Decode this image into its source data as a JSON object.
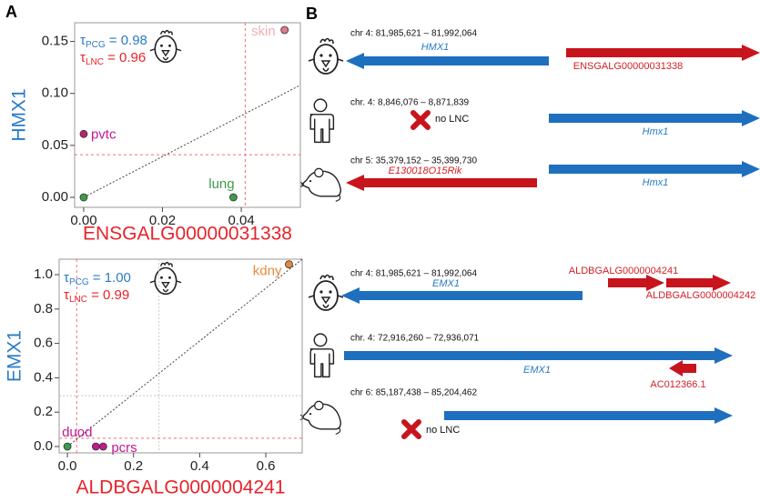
{
  "panels": [
    "A",
    "B"
  ],
  "chart_data": [
    {
      "type": "scatter",
      "x_label": "ENSGALG00000031338",
      "x_label_color": "#e8232a",
      "y_label": "HMX1",
      "y_label_color": "#2a7bc5",
      "xlim": [
        -0.0023,
        0.055
      ],
      "ylim": [
        -0.0096,
        0.168
      ],
      "xticks": [
        {
          "value": 0,
          "label": "0.00"
        },
        {
          "value": 0.02,
          "label": "0.02"
        },
        {
          "value": 0.04,
          "label": "0.04"
        }
      ],
      "yticks": [
        {
          "value": 0,
          "label": "0.00"
        },
        {
          "value": 0.05,
          "label": "0.05"
        },
        {
          "value": 0.1,
          "label": "0.10"
        },
        {
          "value": 0.15,
          "label": "0.15"
        }
      ],
      "x": [
        0,
        0,
        0.038,
        0.051
      ],
      "values": [
        0,
        0.061,
        0,
        0.161
      ],
      "colors": [
        "#3d9c4a",
        "#b5256f",
        "#3d9c4a",
        "#e07a8a"
      ],
      "labels": [
        null,
        "pvtc",
        "lung",
        "skin"
      ],
      "label_colors": [
        null,
        "#c2188f",
        "#3d9c4a",
        "#f2b0b0"
      ],
      "fit": {
        "x": [
          0,
          0.055
        ],
        "y": [
          0,
          0.108
        ]
      },
      "threshold_lines": {
        "x": 0.041,
        "y": 0.041,
        "color": "#f07070"
      },
      "stats": [
        {
          "symbol": "τ",
          "subscript": "PCG",
          "text": " = 0.98",
          "color": "#2a7bc5"
        },
        {
          "symbol": "τ",
          "subscript": "LNC",
          "text": " = 0.96",
          "color": "#e8232a"
        }
      ]
    },
    {
      "type": "scatter",
      "x_label": "ALDBGALG0000004241",
      "x_label_color": "#e8232a",
      "y_label": "EMX1",
      "y_label_color": "#2a7bc5",
      "xlim": [
        -0.025,
        0.71
      ],
      "ylim": [
        -0.037,
        1.09
      ],
      "xticks": [
        {
          "value": 0,
          "label": "0.0"
        },
        0.2,
        0.4,
        0.6
      ],
      "yticks": [
        {
          "value": 0,
          "label": "0.0"
        },
        0.2,
        0.4,
        0.6,
        0.8,
        {
          "value": 1,
          "label": "1.0"
        }
      ],
      "x": [
        0,
        0.086,
        0.108,
        0.67
      ],
      "values": [
        0,
        0,
        0,
        1.06
      ],
      "colors": [
        "#3d9c4a",
        "#c2188f",
        "#c2188f",
        "#e8883a"
      ],
      "labels": [
        "duod",
        null,
        "pcrs",
        "kdny"
      ],
      "label_colors": [
        "#c2188f",
        null,
        "#c2188f",
        "#e8883a"
      ],
      "fit": {
        "x": [
          0,
          0.71
        ],
        "y": [
          0,
          1.09
        ]
      },
      "threshold_lines": {
        "x": 0.028,
        "y": 0.048,
        "color": "#f07070"
      },
      "guide_lines": {
        "x": 0.277,
        "y": 0.296,
        "color": "#c8c8c8"
      },
      "stats": [
        {
          "symbol": "τ",
          "subscript": "PCG",
          "text": " = 1.00",
          "color": "#2a7bc5"
        },
        {
          "symbol": "τ",
          "subscript": "LNC",
          "text": " = 0.99",
          "color": "#e8232a"
        }
      ]
    }
  ],
  "diagram": {
    "rows": [
      {
        "location": "chr 4: 81,985,621 – 81,992,064",
        "pcg": "HMX1",
        "lnc": "ENSGALG00000031338"
      },
      {
        "location": "chr. 4: 8,846,076 – 8,871,839",
        "no_lnc": "no LNC",
        "pcg": "Hmx1"
      },
      {
        "location": "chr 5: 35,379,152 – 35,399,730",
        "lnc": "E130018O15Rik",
        "pcg": "Hmx1"
      },
      {
        "location": "chr 4: 81,985,621 – 81,992,064",
        "lnc": "ALDBGALG0000004241",
        "lnc2": "ALDBGALG0000004242",
        "pcg": "EMX1"
      },
      {
        "location": "chr. 4: 72,916,260 – 72,936,071",
        "pcg": "EMX1",
        "lnc": "AC012366.1"
      },
      {
        "location": "chr 6: 85,187,438 – 85,204,462",
        "no_lnc": "no LNC"
      }
    ]
  }
}
